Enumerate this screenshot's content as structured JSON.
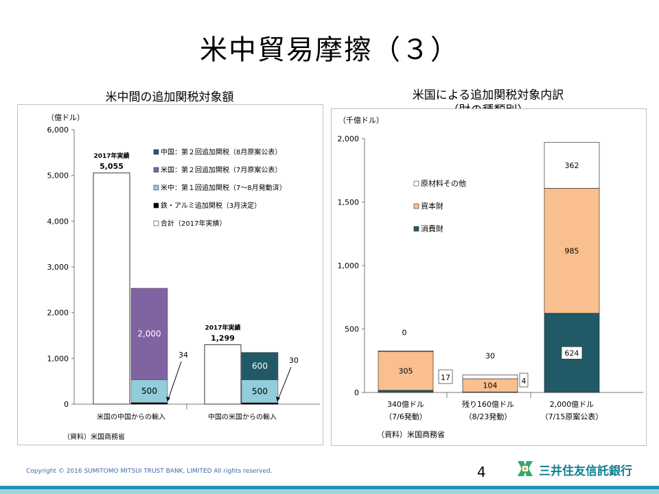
{
  "page": {
    "title": "米中貿易摩擦（３）",
    "copyright": "Copyright © 2016 SUMITOMO  MITSUI  TRUST  BANK, LIMITED   All rights reserved.",
    "page_number": "4",
    "bank_name": "三井住友信託銀行",
    "colors": {
      "footer_bar": "#1c93b3",
      "footer_bar_light": "#9fd3e2",
      "brand": "#0f7f8f"
    }
  },
  "chart_data": [
    {
      "type": "bar",
      "title": "米中間の追加関税対象額",
      "ylabel": "（億ドル）",
      "ylim": [
        0,
        6000
      ],
      "yticks": [
        "0",
        "1,000",
        "2,000",
        "3,000",
        "4,000",
        "5,000",
        "6,000"
      ],
      "categories": [
        "米国の中国からの輸入",
        "中国の米国からの輸入"
      ],
      "total_series": {
        "name": "合計（2017年実績）",
        "values": [
          5055,
          1299
        ],
        "top_labels": [
          "2017年実績",
          "2017年実績"
        ],
        "value_labels": [
          "5,055",
          "1,299"
        ],
        "color": "#ffffff"
      },
      "stack_series": [
        {
          "name": "鉄・アルミ追加関税（3月決定）",
          "values": [
            34,
            30
          ],
          "labels": [
            "34",
            "30"
          ],
          "color": "#000000"
        },
        {
          "name": "米中：第１回追加関税（7～8月発動済）",
          "values": [
            500,
            500
          ],
          "labels": [
            "500",
            "500"
          ],
          "color": "#92cddc"
        },
        {
          "name": "米国：第２回追加関税（7月原案公表）",
          "values": [
            2000,
            0
          ],
          "labels": [
            "2,000",
            ""
          ],
          "color": "#8064a2"
        },
        {
          "name": "中国：第２回追加関税（8月原案公表）",
          "values": [
            0,
            600
          ],
          "labels": [
            "",
            "600"
          ],
          "color": "#215967"
        }
      ],
      "legend": [
        {
          "name": "中国：第２回追加関税（8月原案公表）",
          "color": "#215967"
        },
        {
          "name": "米国：第２回追加関税（7月原案公表）",
          "color": "#8064a2"
        },
        {
          "name": "米中：第１回追加関税（7～8月発動済）",
          "color": "#92cddc"
        },
        {
          "name": "鉄・アルミ追加関税（3月決定）",
          "color": "#000000"
        },
        {
          "name": "合計（2017年実績）",
          "color": "#ffffff"
        }
      ],
      "legend_position": "top-right",
      "source": "（資料）米国商務省",
      "grid": false
    },
    {
      "type": "bar",
      "title": "米国による追加関税対象内訳",
      "subtitle": "（財の種類別）",
      "ylabel": "（千億ドル）",
      "ylim": [
        0,
        2000
      ],
      "yticks": [
        "0",
        "500",
        "1,000",
        "1,500",
        "2,000"
      ],
      "categories": [
        "340億ドル",
        "残り160億ドル",
        "2,000億ドル"
      ],
      "category_sublabels": [
        "（7/6発動）",
        "（8/23発動）",
        "（7/15原案公表）"
      ],
      "series": [
        {
          "name": "消費財",
          "values": [
            17,
            4,
            624
          ],
          "labels": [
            "17",
            "4",
            "624"
          ],
          "color": "#215967"
        },
        {
          "name": "資本財",
          "values": [
            305,
            104,
            985
          ],
          "labels": [
            "305",
            "104",
            "985"
          ],
          "color": "#fabf8f"
        },
        {
          "name": "原材料その他",
          "values": [
            0,
            30,
            362
          ],
          "labels": [
            "0",
            "30",
            "362"
          ],
          "color": "#ffffff"
        }
      ],
      "legend": [
        {
          "name": "原材料その他",
          "color": "#ffffff"
        },
        {
          "name": "資本財",
          "color": "#fabf8f"
        },
        {
          "name": "消費財",
          "color": "#215967"
        }
      ],
      "legend_position": "top-left",
      "source": "（資料）米国商務省",
      "grid": false
    }
  ]
}
